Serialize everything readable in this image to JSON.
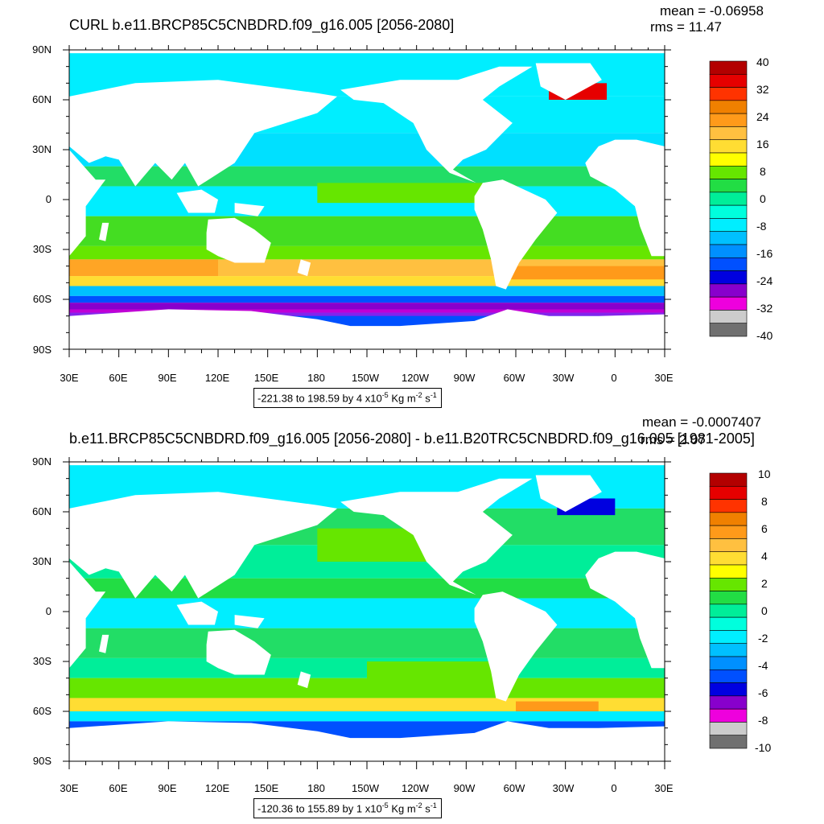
{
  "colors": {
    "land": "#ffffff",
    "frame": "#000000"
  },
  "lat_labels": [
    "90N",
    "60N",
    "30N",
    "0",
    "30S",
    "60S",
    "90S"
  ],
  "lon_labels": [
    "30E",
    "60E",
    "90E",
    "120E",
    "150E",
    "180",
    "150W",
    "120W",
    "90W",
    "60W",
    "30W",
    "0",
    "30E"
  ],
  "panels": [
    {
      "title": "CURL b.e11.BRCP85C5CNBDRD.f09_g16.005 [2056-2080]",
      "mean": "mean = -0.06958",
      "rms": "rms = 11.47",
      "range_text": "-221.38 to 198.59 by 4 x10",
      "range_exp": "-5",
      "range_unit_a": " Kg m",
      "range_unit_exp1": "-2",
      "range_unit_b": " s",
      "range_unit_exp2": "-1",
      "colorbar_labels": [
        "40",
        "32",
        "24",
        "16",
        "8",
        "0",
        "-8",
        "-16",
        "-24",
        "-32",
        "-40"
      ],
      "colorbar_colors": [
        "#b30000",
        "#e60000",
        "#ff3300",
        "#f08000",
        "#ff9a1a",
        "#ffc040",
        "#ffdd33",
        "#ffff00",
        "#66e600",
        "#22dd44",
        "#00ee99",
        "#00ffdd",
        "#00eeff",
        "#00c0ff",
        "#0090ff",
        "#0050ff",
        "#0000e0",
        "#8800cc",
        "#ee00dd",
        "#cccccc",
        "#707070"
      ]
    },
    {
      "title": "b.e11.BRCP85C5CNBDRD.f09_g16.005 [2056-2080] - b.e11.B20TRC5CNBDRD.f09_g16.005 [1981-2005]",
      "mean": "mean = -0.0007407",
      "rms": "rms = 2.07",
      "range_text": "-120.36 to 155.89 by 1 x10",
      "range_exp": "-5",
      "range_unit_a": " Kg m",
      "range_unit_exp1": "-2",
      "range_unit_b": " s",
      "range_unit_exp2": "-1",
      "colorbar_labels": [
        "10",
        "8",
        "6",
        "4",
        "2",
        "0",
        "-2",
        "-4",
        "-6",
        "-8",
        "-10"
      ],
      "colorbar_colors": [
        "#b30000",
        "#e60000",
        "#ff3300",
        "#f08000",
        "#ff9a1a",
        "#ffc040",
        "#ffdd33",
        "#ffff00",
        "#66e600",
        "#22dd44",
        "#00ee99",
        "#00ffdd",
        "#00eeff",
        "#00c0ff",
        "#0090ff",
        "#0050ff",
        "#0000e0",
        "#8800cc",
        "#ee00dd",
        "#cccccc",
        "#707070"
      ]
    }
  ]
}
